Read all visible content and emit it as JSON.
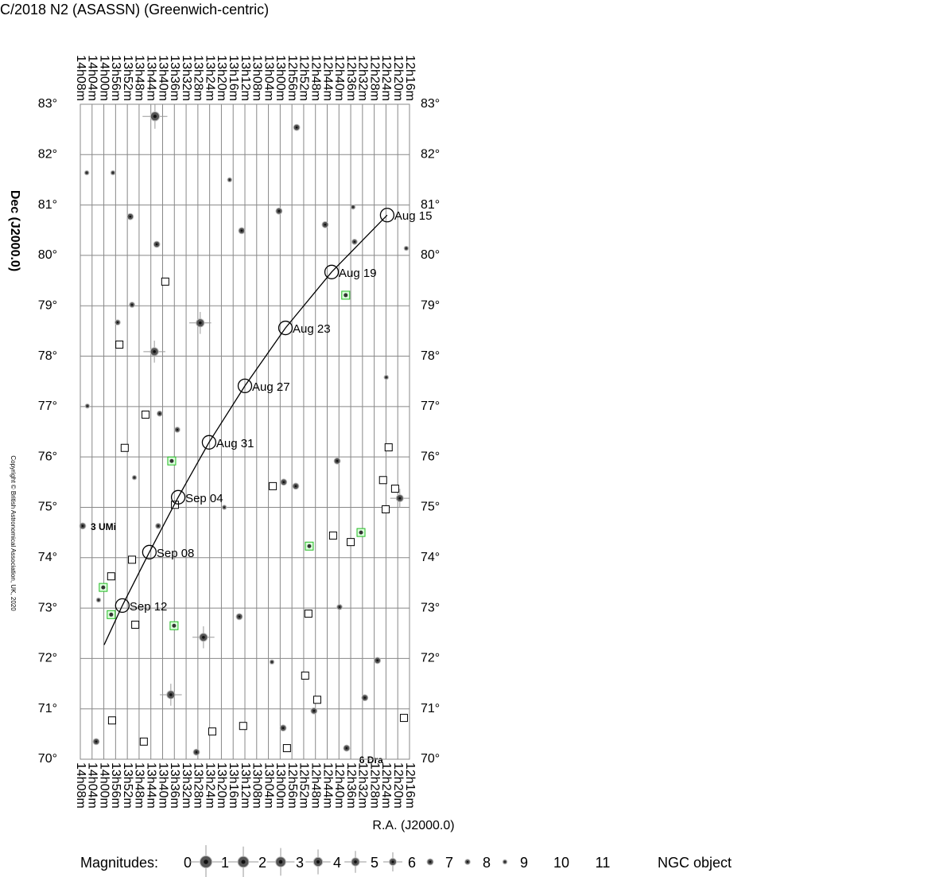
{
  "chart_data": {
    "type": "finder",
    "title": "C/2018 N2 (ASASSN)  (Greenwich-centric)",
    "x_label": "R.A. (J2000.0)",
    "y_label": "Dec (J2000.0)",
    "copyright": "Copyright © British Astronomical Association, UK, 2020",
    "xlim": [
      848,
      736
    ],
    "ylim": [
      70,
      83
    ],
    "grid": true,
    "xticks": [
      {
        "value": 848,
        "label": "14h08m"
      },
      {
        "value": 844,
        "label": "14h04m"
      },
      {
        "value": 840,
        "label": "14h00m"
      },
      {
        "value": 836,
        "label": "13h56m"
      },
      {
        "value": 832,
        "label": "13h52m"
      },
      {
        "value": 828,
        "label": "13h48m"
      },
      {
        "value": 824,
        "label": "13h44m"
      },
      {
        "value": 820,
        "label": "13h40m"
      },
      {
        "value": 816,
        "label": "13h36m"
      },
      {
        "value": 812,
        "label": "13h32m"
      },
      {
        "value": 808,
        "label": "13h28m"
      },
      {
        "value": 804,
        "label": "13h24m"
      },
      {
        "value": 800,
        "label": "13h20m"
      },
      {
        "value": 796,
        "label": "13h16m"
      },
      {
        "value": 792,
        "label": "13h12m"
      },
      {
        "value": 788,
        "label": "13h08m"
      },
      {
        "value": 784,
        "label": "13h04m"
      },
      {
        "value": 780,
        "label": "13h00m"
      },
      {
        "value": 776,
        "label": "12h56m"
      },
      {
        "value": 772,
        "label": "12h52m"
      },
      {
        "value": 768,
        "label": "12h48m"
      },
      {
        "value": 764,
        "label": "12h44m"
      },
      {
        "value": 760,
        "label": "12h40m"
      },
      {
        "value": 756,
        "label": "12h36m"
      },
      {
        "value": 752,
        "label": "12h32m"
      },
      {
        "value": 748,
        "label": "12h28m"
      },
      {
        "value": 744,
        "label": "12h24m"
      },
      {
        "value": 740,
        "label": "12h20m"
      },
      {
        "value": 736,
        "label": "12h16m"
      }
    ],
    "yticks": [
      {
        "value": 70,
        "label": "70°"
      },
      {
        "value": 71,
        "label": "71°"
      },
      {
        "value": 72,
        "label": "72°"
      },
      {
        "value": 73,
        "label": "73°"
      },
      {
        "value": 74,
        "label": "74°"
      },
      {
        "value": 75,
        "label": "75°"
      },
      {
        "value": 76,
        "label": "76°"
      },
      {
        "value": 77,
        "label": "77°"
      },
      {
        "value": 78,
        "label": "78°"
      },
      {
        "value": 79,
        "label": "79°"
      },
      {
        "value": 80,
        "label": "80°"
      },
      {
        "value": 81,
        "label": "81°"
      },
      {
        "value": 82,
        "label": "82°"
      },
      {
        "value": 83,
        "label": "83°"
      }
    ],
    "track": {
      "color": "#000",
      "x": [
        743.6,
        762.5,
        778.2,
        792.0,
        804.2,
        814.7,
        824.5,
        833.7,
        839.9
      ],
      "y": [
        80.8,
        79.67,
        78.56,
        77.41,
        76.29,
        75.2,
        74.11,
        73.05,
        72.27
      ]
    },
    "dates": {
      "labels": [
        "Aug 15",
        "Aug 19",
        "Aug 23",
        "Aug 27",
        "Aug 31",
        "Sep 04",
        "Sep 08",
        "Sep 12"
      ],
      "x": [
        743.6,
        762.5,
        778.2,
        792.0,
        804.2,
        814.7,
        824.5,
        833.7
      ],
      "y": [
        80.8,
        79.67,
        78.56,
        77.41,
        76.29,
        75.2,
        74.11,
        73.05
      ]
    },
    "stars": {
      "x": [
        822.6,
        774.4,
        845.8,
        836.9,
        831.0,
        822.0,
        793.1,
        780.4,
        764.7,
        807.2,
        822.8,
        830.4,
        845.6,
        821.0,
        815.0,
        829.6,
        778.8,
        774.7,
        760.6,
        739.3,
        847.2,
        821.5,
        806.1,
        817.2,
        793.9,
        779.0,
        808.5,
        757.4,
        751.2,
        746.9,
        759.8,
        743.9,
        754.7,
        737.1,
        842.6,
        835.3,
        782.8,
        768.5,
        799.0,
        797.2,
        755.2,
        841.8
      ],
      "y": [
        82.76,
        82.54,
        81.64,
        81.64,
        80.77,
        80.22,
        80.49,
        80.88,
        80.61,
        78.66,
        78.09,
        79.02,
        77.01,
        76.86,
        76.54,
        75.59,
        75.5,
        75.42,
        75.92,
        75.18,
        74.63,
        74.63,
        72.42,
        71.28,
        72.83,
        70.62,
        70.14,
        70.22,
        71.22,
        71.96,
        73.02,
        77.58,
        80.27,
        80.14,
        70.35,
        78.67,
        71.93,
        70.96,
        75.0,
        81.5,
        80.96,
        73.16
      ],
      "mag": [
        3,
        6,
        8,
        8,
        6,
        6,
        6,
        6,
        6,
        4,
        4,
        7,
        8,
        7,
        7,
        8,
        6,
        6,
        6,
        5,
        6,
        7,
        4,
        4,
        6,
        6,
        6,
        6,
        6,
        6,
        7,
        8,
        7,
        8,
        6,
        7,
        8,
        6,
        8,
        8,
        8,
        8
      ]
    },
    "ngc": {
      "name": "NGC object",
      "color": "#000",
      "x": [
        819.1,
        834.7,
        825.8,
        832.9,
        782.5,
        762.0,
        756.0,
        743.1,
        745.0,
        740.9,
        744.1,
        837.5,
        830.4,
        829.3,
        770.4,
        771.5,
        767.4,
        837.2,
        826.4,
        803.1,
        792.6,
        777.7,
        737.9,
        815.8
      ],
      "y": [
        79.48,
        78.23,
        76.84,
        76.18,
        75.42,
        74.44,
        74.31,
        76.19,
        75.54,
        75.37,
        74.96,
        73.63,
        73.96,
        72.67,
        72.89,
        71.66,
        71.18,
        70.77,
        70.35,
        70.55,
        70.66,
        70.22,
        70.82,
        75.05
      ]
    },
    "ngc_marked": {
      "color": "#22bb22",
      "x": [
        757.7,
        816.9,
        840.2,
        837.5,
        816.1,
        752.5,
        770.1
      ],
      "y": [
        79.21,
        75.92,
        73.41,
        72.87,
        72.65,
        74.5,
        74.23
      ]
    },
    "annotations": [
      {
        "text": "3 UMi",
        "x": 847.2,
        "y": 74.63
      },
      {
        "text": "6 Dra",
        "x": 755.8,
        "y": 70.0
      }
    ],
    "legend": {
      "title": "Magnitudes:",
      "magnitudes": [
        0,
        1,
        2,
        3,
        4,
        5,
        6,
        7,
        8,
        9,
        10,
        11
      ],
      "ngc_label": "NGC object"
    }
  }
}
